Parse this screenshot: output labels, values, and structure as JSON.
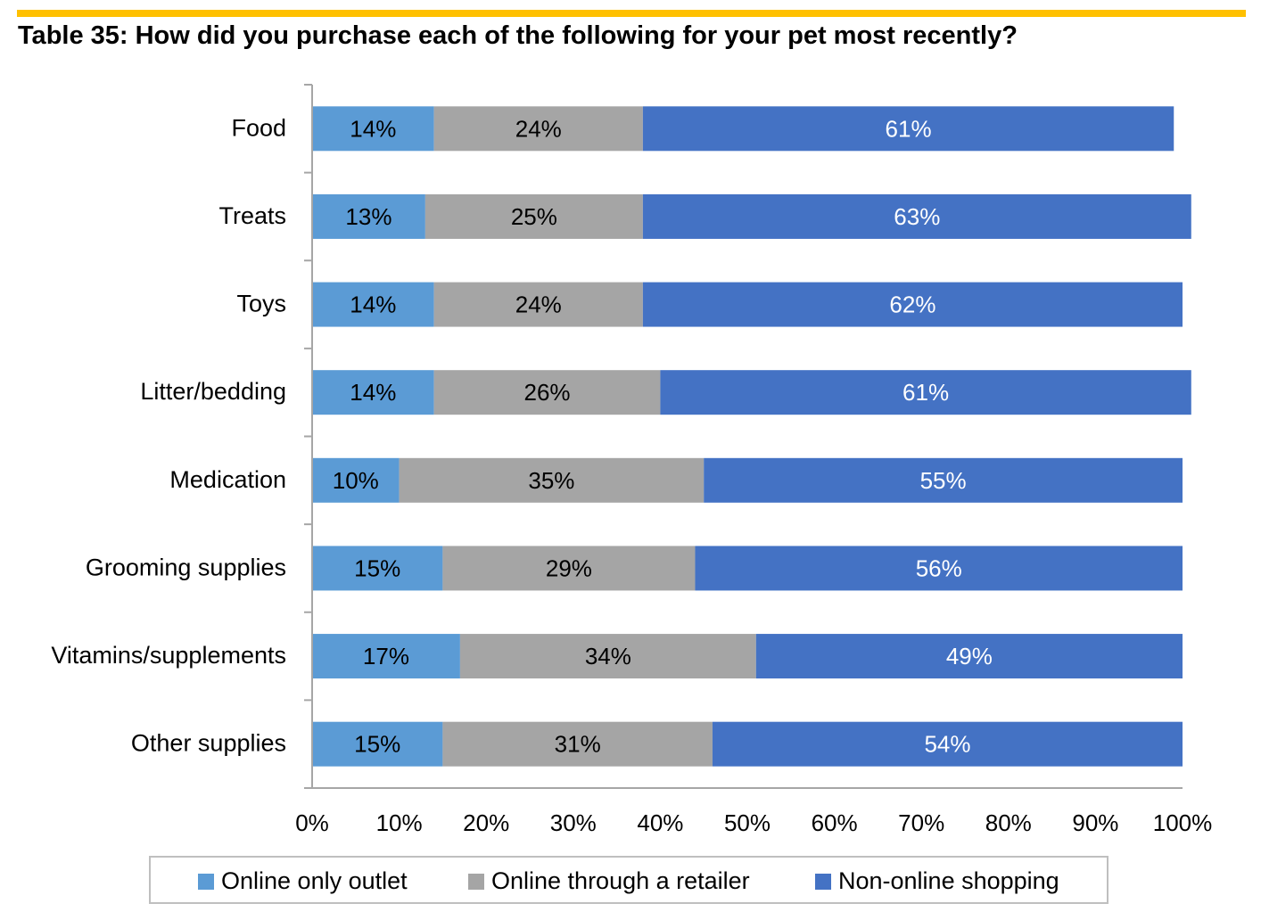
{
  "title": "Table 35: How did you purchase each of the following for your pet most recently?",
  "colors": {
    "accent_rule": "#FFC000",
    "online_only": "#5B9BD5",
    "online_retailer": "#A5A5A5",
    "non_online": "#4472C4"
  },
  "chart_data": {
    "type": "bar",
    "orientation": "horizontal",
    "stacked": true,
    "title": "Table 35: How did you purchase each of the following for your pet most recently?",
    "categories": [
      "Food",
      "Treats",
      "Toys",
      "Litter/bedding",
      "Medication",
      "Grooming supplies",
      "Vitamins/supplements",
      "Other supplies"
    ],
    "series": [
      {
        "name": "Online only outlet",
        "color": "#5B9BD5",
        "values": [
          14,
          13,
          14,
          14,
          10,
          15,
          17,
          15
        ]
      },
      {
        "name": "Online through a retailer",
        "color": "#A5A5A5",
        "values": [
          24,
          25,
          24,
          26,
          35,
          29,
          34,
          31
        ]
      },
      {
        "name": "Non-online shopping",
        "color": "#4472C4",
        "values": [
          61,
          63,
          62,
          61,
          55,
          56,
          49,
          54
        ]
      }
    ],
    "data_labels": [
      [
        "14%",
        "13%",
        "14%",
        "14%",
        "10%",
        "15%",
        "17%",
        "15%"
      ],
      [
        "24%",
        "25%",
        "24%",
        "26%",
        "35%",
        "29%",
        "34%",
        "31%"
      ],
      [
        "61%",
        "63%",
        "62%",
        "61%",
        "55%",
        "56%",
        "49%",
        "54%"
      ]
    ],
    "xlim": [
      0,
      100
    ],
    "xticks": [
      "0%",
      "10%",
      "20%",
      "30%",
      "40%",
      "50%",
      "60%",
      "70%",
      "80%",
      "90%",
      "100%"
    ],
    "grid": false,
    "legend_position": "bottom"
  },
  "legend": [
    {
      "label": "Online only outlet",
      "color": "#5B9BD5"
    },
    {
      "label": "Online through a retailer",
      "color": "#A5A5A5"
    },
    {
      "label": "Non-online shopping",
      "color": "#4472C4"
    }
  ]
}
